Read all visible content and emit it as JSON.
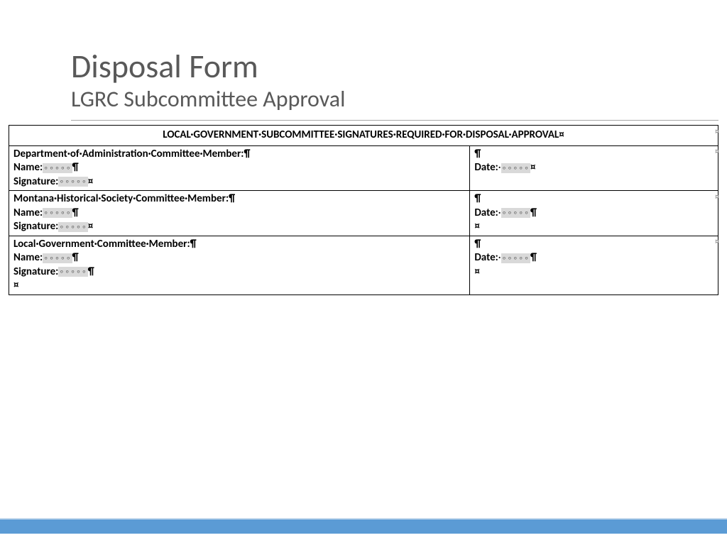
{
  "colors": {
    "heading": "#595959",
    "rule": "#a6a6a6",
    "tableBorder": "#000000",
    "fieldFill": "#d9d9d9",
    "endMarker": "#808080",
    "footerBar": "#5b9bd5",
    "footerTop": "#c5d9ed",
    "pageBg": "#ffffff"
  },
  "marks": {
    "pilcrow": "¶",
    "cellEnd": "¤",
    "rowEnd": "¤",
    "fieldPlaceholder": "∘∘∘∘∘",
    "middot": "·"
  },
  "header": {
    "title": "Disposal Form",
    "subtitle": "LGRC Subcommittee Approval"
  },
  "table": {
    "headerWords": [
      "LOCAL",
      "GOVERNMENT",
      "SUBCOMMITTEE",
      "SIGNATURES",
      "REQUIRED",
      "FOR",
      "DISPOSAL",
      "APPROVAL"
    ],
    "rows": [
      {
        "memberWords": [
          "Department",
          "of",
          "Administration",
          "Committee",
          "Member:"
        ],
        "nameLabel": "Name:",
        "signatureLabel": "Signature:",
        "dateLabel": "Date:",
        "trailingCellMark": false,
        "dateTrailingPilcrow": false,
        "dateTrailingCellLine": false
      },
      {
        "memberWords": [
          "Montana",
          "Historical",
          "Society",
          "Committee",
          "Member:"
        ],
        "nameLabel": "Name:",
        "signatureLabel": "Signature:",
        "dateLabel": "Date:",
        "trailingCellMark": false,
        "dateTrailingPilcrow": true,
        "dateTrailingCellLine": true
      },
      {
        "memberWords": [
          "Local",
          "Government",
          "Committee",
          "Member:"
        ],
        "nameLabel": "Name:",
        "signatureLabel": "Signature:",
        "dateLabel": "Date:",
        "trailingCellMark": true,
        "dateTrailingPilcrow": true,
        "dateTrailingCellLine": true
      }
    ]
  }
}
